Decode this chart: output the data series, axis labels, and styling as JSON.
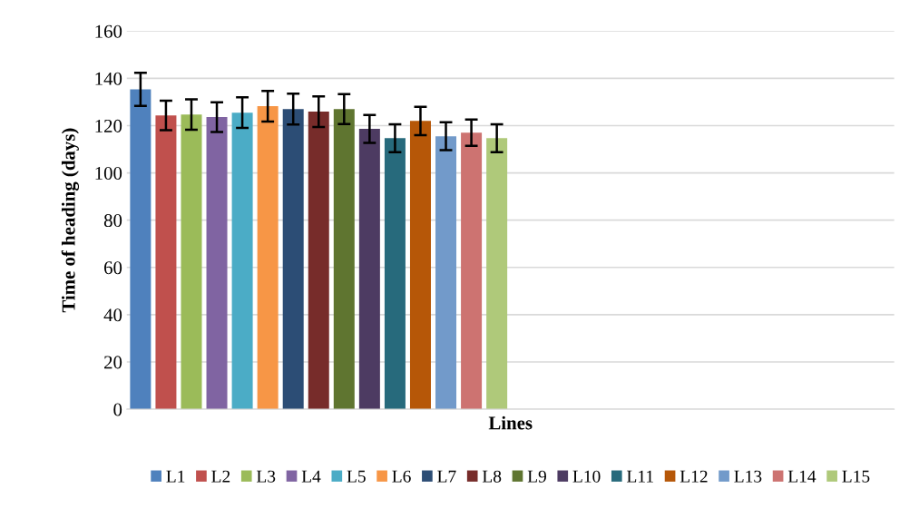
{
  "chart_data": {
    "type": "bar",
    "xlabel": "Lines",
    "ylabel": "Time of heading (days)",
    "categories": [
      null,
      null
    ],
    "ylim": [
      0,
      160
    ],
    "yticks": [
      0,
      20,
      40,
      60,
      80,
      100,
      120,
      140,
      160
    ],
    "grid": "y",
    "legend": "bottom",
    "series": [
      {
        "name": "L1",
        "color": "#4f81bd",
        "values": [
          135.3,
          null
        ],
        "errors": [
          7.0,
          null
        ]
      },
      {
        "name": "L2",
        "color": "#c0504d",
        "values": [
          124.3,
          null
        ],
        "errors": [
          6.2,
          null
        ]
      },
      {
        "name": "L3",
        "color": "#9bbb59",
        "values": [
          124.7,
          null
        ],
        "errors": [
          6.4,
          null
        ]
      },
      {
        "name": "L4",
        "color": "#8064a2",
        "values": [
          123.6,
          null
        ],
        "errors": [
          6.3,
          null
        ]
      },
      {
        "name": "L5",
        "color": "#4bacc6",
        "values": [
          125.5,
          null
        ],
        "errors": [
          6.5,
          null
        ]
      },
      {
        "name": "L6",
        "color": "#f79646",
        "values": [
          128.2,
          null
        ],
        "errors": [
          6.5,
          null
        ]
      },
      {
        "name": "L7",
        "color": "#2c4d75",
        "values": [
          127.0,
          null
        ],
        "errors": [
          6.5,
          null
        ]
      },
      {
        "name": "L8",
        "color": "#772c2a",
        "values": [
          125.9,
          null
        ],
        "errors": [
          6.5,
          null
        ]
      },
      {
        "name": "L9",
        "color": "#5f7530",
        "values": [
          127.0,
          null
        ],
        "errors": [
          6.3,
          null
        ]
      },
      {
        "name": "L10",
        "color": "#4d3b62",
        "values": [
          118.6,
          null
        ],
        "errors": [
          5.9,
          null
        ]
      },
      {
        "name": "L11",
        "color": "#276a7c",
        "values": [
          114.7,
          null
        ],
        "errors": [
          5.9,
          null
        ]
      },
      {
        "name": "L12",
        "color": "#b65708",
        "values": [
          122.0,
          null
        ],
        "errors": [
          6.0,
          null
        ]
      },
      {
        "name": "L13",
        "color": "#729aca",
        "values": [
          115.5,
          null
        ],
        "errors": [
          5.9,
          null
        ]
      },
      {
        "name": "L14",
        "color": "#cd7371",
        "values": [
          117.0,
          null
        ],
        "errors": [
          5.6,
          null
        ]
      },
      {
        "name": "L15",
        "color": "#afc97a",
        "values": [
          114.7,
          null
        ],
        "errors": [
          5.9,
          null
        ]
      }
    ]
  }
}
